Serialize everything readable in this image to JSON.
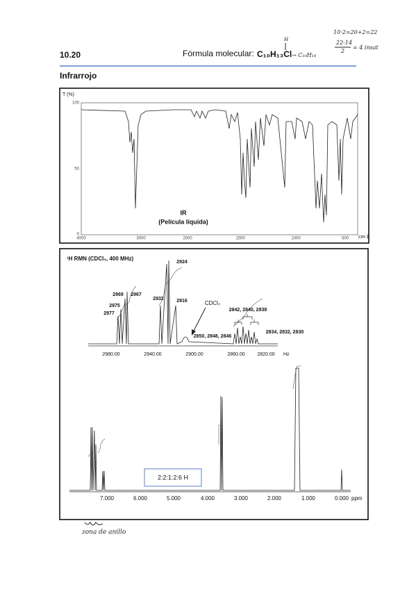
{
  "header": {
    "number": "10.20",
    "formula_label": "Fórmula molecular:",
    "formula": "C₁₀H₁₃Cl",
    "annotation_h": "H",
    "annotation_formula": "→ C₁₀H₁₄",
    "calc_line1": "10·2=20+2=22",
    "calc_num": "22-14",
    "calc_den": "2",
    "calc_result": "= 4 insat"
  },
  "ir": {
    "section_title": "Infrarrojo",
    "y_label": "T (%)",
    "y_ticks": [
      "100",
      "50",
      "0"
    ],
    "x_ticks": [
      "4000",
      "3000",
      "2000",
      "1500",
      "1000",
      "500"
    ],
    "x_unit": "cm-1",
    "title": "IR",
    "subtitle": "(Película líquida)"
  },
  "nmr": {
    "title": "¹H RMN (CDCl₃, 400 MHz)",
    "peak_labels": [
      "2924",
      "2969",
      "2967",
      "2975",
      "2977",
      "2932",
      "2916",
      "CDCl₃",
      "2842, 2840, 2838",
      "2850, 2848, 2846",
      "2834, 2832, 2830"
    ],
    "inset_x_ticks": [
      "2980.00",
      "2940.00",
      "2900.00",
      "2860.00",
      "2820.00"
    ],
    "inset_x_unit": "Hz",
    "x_ticks": [
      "7.000",
      "6.000",
      "5.000",
      "4.000",
      "3.000",
      "2.000",
      "1.000",
      "0.000"
    ],
    "x_unit": "ppm",
    "integration_ratio": "2:2:1:2:6 H"
  },
  "annotation": "zona de anillo"
}
